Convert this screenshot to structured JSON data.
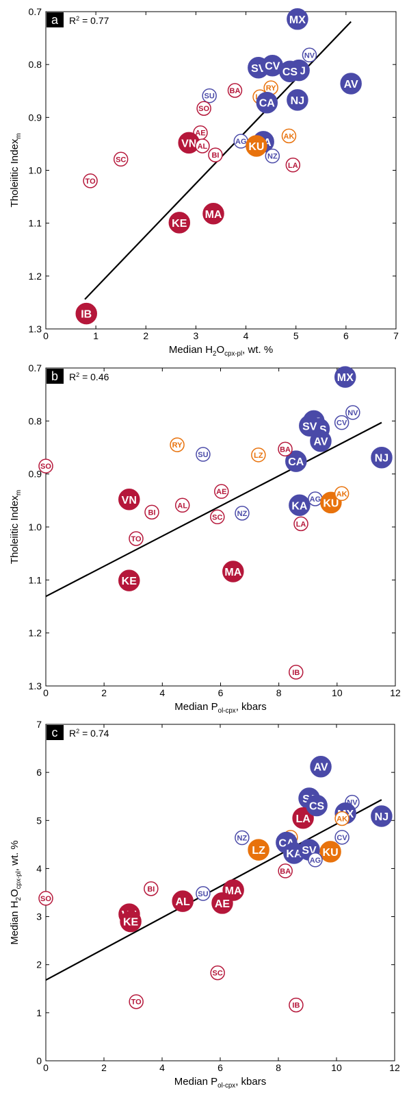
{
  "chart_data": [
    {
      "type": "scatter",
      "panel": "a",
      "annotation": [
        {
          "text": "R"
        },
        {
          "text": "2",
          "sup": true
        },
        {
          "text": " = 0.77"
        }
      ],
      "xlabel": [
        {
          "text": "Median H"
        },
        {
          "text": "2",
          "sub": true
        },
        {
          "text": "O"
        },
        {
          "text": "cpx-pl",
          "sub": true
        },
        {
          "text": ", wt. %"
        }
      ],
      "ylabel": [
        {
          "text": "Tholeiitic Index"
        },
        {
          "text": "m",
          "sub": true
        }
      ],
      "xlim": [
        0,
        7
      ],
      "ylim": [
        0.7,
        1.3
      ],
      "yreverse": true,
      "xticks": [
        0,
        1,
        2,
        3,
        4,
        5,
        6,
        7
      ],
      "yticks": [
        0.7,
        0.8,
        0.9,
        {
          "value": 1,
          "label": "1.0"
        },
        1.1,
        1.2,
        1.3
      ],
      "fit": {
        "x": [
          0.78,
          6.1
        ],
        "y": [
          1.244,
          0.719
        ]
      },
      "points": [
        {
          "label": "MX",
          "x": 5.03,
          "y": 0.714,
          "color": "#4a4aa8",
          "filled": true
        },
        {
          "label": "NV",
          "x": 5.27,
          "y": 0.782,
          "color": "#4a4aa8",
          "filled": false
        },
        {
          "label": "SV",
          "x": 4.25,
          "y": 0.806,
          "color": "#4a4aa8",
          "filled": true
        },
        {
          "label": "CV",
          "x": 4.53,
          "y": 0.802,
          "color": "#4a4aa8",
          "filled": true
        },
        {
          "label": "SJ",
          "x": 5.06,
          "y": 0.811,
          "color": "#4a4aa8",
          "filled": true
        },
        {
          "label": "CS",
          "x": 4.88,
          "y": 0.813,
          "color": "#4a4aa8",
          "filled": true
        },
        {
          "label": "AV",
          "x": 6.1,
          "y": 0.836,
          "color": "#4a4aa8",
          "filled": true
        },
        {
          "label": "NJ",
          "x": 5.03,
          "y": 0.867,
          "color": "#4a4aa8",
          "filled": true
        },
        {
          "label": "RY",
          "x": 4.5,
          "y": 0.844,
          "color": "#e8720c",
          "filled": false
        },
        {
          "label": "LZ",
          "x": 4.28,
          "y": 0.861,
          "color": "#e8720c",
          "filled": false
        },
        {
          "label": "CA",
          "x": 4.42,
          "y": 0.872,
          "color": "#4a4aa8",
          "filled": true
        },
        {
          "label": "BA",
          "x": 3.78,
          "y": 0.849,
          "color": "#b5173a",
          "filled": false
        },
        {
          "label": "SU",
          "x": 3.27,
          "y": 0.859,
          "color": "#4a4aa8",
          "filled": false
        },
        {
          "label": "SO",
          "x": 3.16,
          "y": 0.883,
          "color": "#b5173a",
          "filled": false
        },
        {
          "label": "AE",
          "x": 3.09,
          "y": 0.929,
          "color": "#b5173a",
          "filled": false
        },
        {
          "label": "VN",
          "x": 2.86,
          "y": 0.948,
          "color": "#b5173a",
          "filled": true
        },
        {
          "label": "AL",
          "x": 3.13,
          "y": 0.954,
          "color": "#b5173a",
          "filled": false
        },
        {
          "label": "BI",
          "x": 3.39,
          "y": 0.971,
          "color": "#b5173a",
          "filled": false
        },
        {
          "label": "AG",
          "x": 3.9,
          "y": 0.945,
          "color": "#4a4aa8",
          "filled": false
        },
        {
          "label": "KA",
          "x": 4.35,
          "y": 0.946,
          "color": "#4a4aa8",
          "filled": true
        },
        {
          "label": "KU",
          "x": 4.21,
          "y": 0.954,
          "color": "#e8720c",
          "filled": true
        },
        {
          "label": "NZ",
          "x": 4.53,
          "y": 0.973,
          "color": "#4a4aa8",
          "filled": false
        },
        {
          "label": "AK",
          "x": 4.86,
          "y": 0.935,
          "color": "#e8720c",
          "filled": false
        },
        {
          "label": "LA",
          "x": 4.94,
          "y": 0.99,
          "color": "#b5173a",
          "filled": false
        },
        {
          "label": "SC",
          "x": 1.5,
          "y": 0.979,
          "color": "#b5173a",
          "filled": false
        },
        {
          "label": "TO",
          "x": 0.89,
          "y": 1.02,
          "color": "#b5173a",
          "filled": false
        },
        {
          "label": "KE",
          "x": 2.67,
          "y": 1.099,
          "color": "#b5173a",
          "filled": true
        },
        {
          "label": "MA",
          "x": 3.35,
          "y": 1.082,
          "color": "#b5173a",
          "filled": true
        },
        {
          "label": "IB",
          "x": 0.81,
          "y": 1.271,
          "color": "#b5173a",
          "filled": true
        }
      ]
    },
    {
      "type": "scatter",
      "panel": "b",
      "annotation": [
        {
          "text": "R"
        },
        {
          "text": "2",
          "sup": true
        },
        {
          "text": " = 0.46"
        }
      ],
      "xlabel": [
        {
          "text": "Median P"
        },
        {
          "text": "ol-cpx",
          "sub": true
        },
        {
          "text": ", kbars"
        }
      ],
      "ylabel": [
        {
          "text": "Tholeiitic Index"
        },
        {
          "text": "m",
          "sub": true
        }
      ],
      "xlim": [
        0,
        12
      ],
      "ylim": [
        0.7,
        1.3
      ],
      "yreverse": true,
      "xticks": [
        0,
        2,
        4,
        6,
        8,
        10,
        12
      ],
      "yticks": [
        0.7,
        0.8,
        0.9,
        {
          "value": 1,
          "label": "1.0"
        },
        1.1,
        1.2,
        1.3
      ],
      "fit": {
        "x": [
          0,
          11.53
        ],
        "y": [
          1.131,
          0.803
        ]
      },
      "points": [
        {
          "label": "MX",
          "x": 10.28,
          "y": 0.717,
          "color": "#4a4aa8",
          "filled": true
        },
        {
          "label": "NV",
          "x": 10.54,
          "y": 0.784,
          "color": "#4a4aa8",
          "filled": false
        },
        {
          "label": "CV",
          "x": 10.16,
          "y": 0.803,
          "color": "#4a4aa8",
          "filled": false
        },
        {
          "label": "SJ",
          "x": 9.2,
          "y": 0.8,
          "color": "#4a4aa8",
          "filled": true
        },
        {
          "label": "CS",
          "x": 9.38,
          "y": 0.815,
          "color": "#4a4aa8",
          "filled": true
        },
        {
          "label": "SV",
          "x": 9.06,
          "y": 0.809,
          "color": "#4a4aa8",
          "filled": true
        },
        {
          "label": "AV",
          "x": 9.44,
          "y": 0.838,
          "color": "#4a4aa8",
          "filled": true
        },
        {
          "label": "NJ",
          "x": 11.53,
          "y": 0.869,
          "color": "#4a4aa8",
          "filled": true
        },
        {
          "label": "CA",
          "x": 8.59,
          "y": 0.876,
          "color": "#4a4aa8",
          "filled": true
        },
        {
          "label": "BA",
          "x": 8.22,
          "y": 0.853,
          "color": "#b5173a",
          "filled": false
        },
        {
          "label": "LZ",
          "x": 7.3,
          "y": 0.864,
          "color": "#e8720c",
          "filled": false
        },
        {
          "label": "SU",
          "x": 5.4,
          "y": 0.863,
          "color": "#4a4aa8",
          "filled": false
        },
        {
          "label": "RY",
          "x": 4.51,
          "y": 0.845,
          "color": "#e8720c",
          "filled": false
        },
        {
          "label": "SO",
          "x": 0,
          "y": 0.885,
          "color": "#b5173a",
          "filled": false
        },
        {
          "label": "VN",
          "x": 2.86,
          "y": 0.948,
          "color": "#b5173a",
          "filled": true
        },
        {
          "label": "BI",
          "x": 3.64,
          "y": 0.972,
          "color": "#b5173a",
          "filled": false
        },
        {
          "label": "AL",
          "x": 4.69,
          "y": 0.959,
          "color": "#b5173a",
          "filled": false
        },
        {
          "label": "AE",
          "x": 6.03,
          "y": 0.933,
          "color": "#b5173a",
          "filled": false
        },
        {
          "label": "SC",
          "x": 5.89,
          "y": 0.981,
          "color": "#b5173a",
          "filled": false
        },
        {
          "label": "NZ",
          "x": 6.74,
          "y": 0.974,
          "color": "#4a4aa8",
          "filled": false
        },
        {
          "label": "TO",
          "x": 3.1,
          "y": 1.022,
          "color": "#b5173a",
          "filled": false
        },
        {
          "label": "KE",
          "x": 2.86,
          "y": 1.101,
          "color": "#b5173a",
          "filled": true
        },
        {
          "label": "MA",
          "x": 6.43,
          "y": 1.084,
          "color": "#b5173a",
          "filled": true
        },
        {
          "label": "AG",
          "x": 9.25,
          "y": 0.947,
          "color": "#4a4aa8",
          "filled": false
        },
        {
          "label": "KA",
          "x": 8.71,
          "y": 0.959,
          "color": "#4a4aa8",
          "filled": true
        },
        {
          "label": "KU",
          "x": 9.79,
          "y": 0.954,
          "color": "#e8720c",
          "filled": true
        },
        {
          "label": "AK",
          "x": 10.16,
          "y": 0.937,
          "color": "#e8720c",
          "filled": false
        },
        {
          "label": "LA",
          "x": 8.76,
          "y": 0.994,
          "color": "#b5173a",
          "filled": false
        },
        {
          "label": "IB",
          "x": 8.59,
          "y": 1.274,
          "color": "#b5173a",
          "filled": false
        }
      ]
    },
    {
      "type": "scatter",
      "panel": "c",
      "annotation": [
        {
          "text": "R"
        },
        {
          "text": "2",
          "sup": true
        },
        {
          "text": " = 0.74"
        }
      ],
      "xlabel": [
        {
          "text": "Median P"
        },
        {
          "text": "ol-cpx",
          "sub": true
        },
        {
          "text": ", kbars"
        }
      ],
      "ylabel": [
        {
          "text": "Median H"
        },
        {
          "text": "2",
          "sub": true
        },
        {
          "text": "O"
        },
        {
          "text": "cpx-pl",
          "sub": true
        },
        {
          "text": ", wt. %"
        }
      ],
      "xlim": [
        0,
        12
      ],
      "ylim": [
        0,
        7
      ],
      "yreverse": false,
      "xticks": [
        0,
        2,
        4,
        6,
        8,
        10,
        12
      ],
      "yticks": [
        0,
        1,
        2,
        3,
        4,
        5,
        6,
        7
      ],
      "fit": {
        "x": [
          0,
          11.55
        ],
        "y": [
          1.68,
          5.43
        ]
      },
      "points": [
        {
          "label": "AV",
          "x": 9.46,
          "y": 6.12,
          "color": "#4a4aa8",
          "filled": true
        },
        {
          "label": "NV",
          "x": 10.54,
          "y": 5.38,
          "color": "#4a4aa8",
          "filled": false
        },
        {
          "label": "MX",
          "x": 10.31,
          "y": 5.15,
          "color": "#4a4aa8",
          "filled": true
        },
        {
          "label": "NJ",
          "x": 11.55,
          "y": 5.09,
          "color": "#4a4aa8",
          "filled": true
        },
        {
          "label": "SJ",
          "x": 9.06,
          "y": 5.46,
          "color": "#4a4aa8",
          "filled": true
        },
        {
          "label": "LA",
          "x": 8.85,
          "y": 5.05,
          "color": "#b5173a",
          "filled": true
        },
        {
          "label": "CS",
          "x": 9.32,
          "y": 5.31,
          "color": "#4a4aa8",
          "filled": true
        },
        {
          "label": "AK",
          "x": 10.19,
          "y": 5.04,
          "color": "#e8720c",
          "filled": false
        },
        {
          "label": "CV",
          "x": 10.19,
          "y": 4.65,
          "color": "#4a4aa8",
          "filled": false
        },
        {
          "label": "RY",
          "x": 8.42,
          "y": 4.65,
          "color": "#e8720c",
          "filled": false
        },
        {
          "label": "CA",
          "x": 8.28,
          "y": 4.54,
          "color": "#4a4aa8",
          "filled": true
        },
        {
          "label": "KA",
          "x": 8.54,
          "y": 4.32,
          "color": "#4a4aa8",
          "filled": true
        },
        {
          "label": "SV",
          "x": 9.06,
          "y": 4.39,
          "color": "#4a4aa8",
          "filled": true
        },
        {
          "label": "KU",
          "x": 9.79,
          "y": 4.35,
          "color": "#e8720c",
          "filled": true
        },
        {
          "label": "AG",
          "x": 9.27,
          "y": 4.18,
          "color": "#4a4aa8",
          "filled": false
        },
        {
          "label": "LZ",
          "x": 7.32,
          "y": 4.39,
          "color": "#e8720c",
          "filled": true
        },
        {
          "label": "NZ",
          "x": 6.75,
          "y": 4.64,
          "color": "#4a4aa8",
          "filled": false
        },
        {
          "label": "BA",
          "x": 8.24,
          "y": 3.95,
          "color": "#b5173a",
          "filled": false
        },
        {
          "label": "MA",
          "x": 6.45,
          "y": 3.55,
          "color": "#b5173a",
          "filled": true
        },
        {
          "label": "AE",
          "x": 6.07,
          "y": 3.28,
          "color": "#b5173a",
          "filled": true
        },
        {
          "label": "AL",
          "x": 4.71,
          "y": 3.32,
          "color": "#b5173a",
          "filled": true
        },
        {
          "label": "SU",
          "x": 5.41,
          "y": 3.48,
          "color": "#4a4aa8",
          "filled": false
        },
        {
          "label": "BI",
          "x": 3.62,
          "y": 3.58,
          "color": "#b5173a",
          "filled": false
        },
        {
          "label": "SO",
          "x": 0,
          "y": 3.38,
          "color": "#b5173a",
          "filled": false
        },
        {
          "label": "VN",
          "x": 2.87,
          "y": 3.05,
          "color": "#b5173a",
          "filled": true
        },
        {
          "label": "KE",
          "x": 2.92,
          "y": 2.9,
          "color": "#b5173a",
          "filled": true
        },
        {
          "label": "SC",
          "x": 5.91,
          "y": 1.83,
          "color": "#b5173a",
          "filled": false
        },
        {
          "label": "TO",
          "x": 3.11,
          "y": 1.23,
          "color": "#b5173a",
          "filled": false
        },
        {
          "label": "IB",
          "x": 8.61,
          "y": 1.16,
          "color": "#b5173a",
          "filled": false
        }
      ]
    }
  ]
}
